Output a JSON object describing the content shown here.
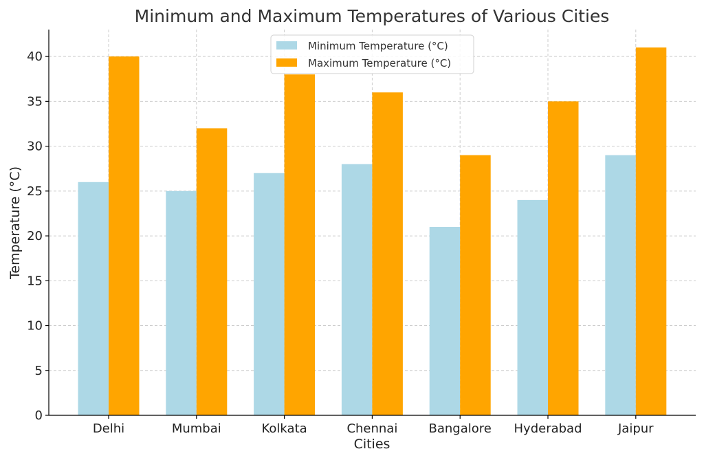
{
  "chart_data": {
    "type": "bar",
    "title": "Minimum and Maximum Temperatures of Various Cities",
    "xlabel": "Cities",
    "ylabel": "Temperature (°C)",
    "categories": [
      "Delhi",
      "Mumbai",
      "Kolkata",
      "Chennai",
      "Bangalore",
      "Hyderabad",
      "Jaipur"
    ],
    "series": [
      {
        "name": "Minimum Temperature (°C)",
        "color": "#add8e6",
        "values": [
          26,
          25,
          27,
          28,
          21,
          24,
          29
        ]
      },
      {
        "name": "Maximum Temperature (°C)",
        "color": "#ffa500",
        "values": [
          40,
          32,
          38,
          36,
          29,
          35,
          41
        ]
      }
    ],
    "ylim": [
      0,
      43
    ],
    "yticks": [
      0,
      5,
      10,
      15,
      20,
      25,
      30,
      35,
      40
    ],
    "grid": true,
    "legend_position": "top-center"
  }
}
